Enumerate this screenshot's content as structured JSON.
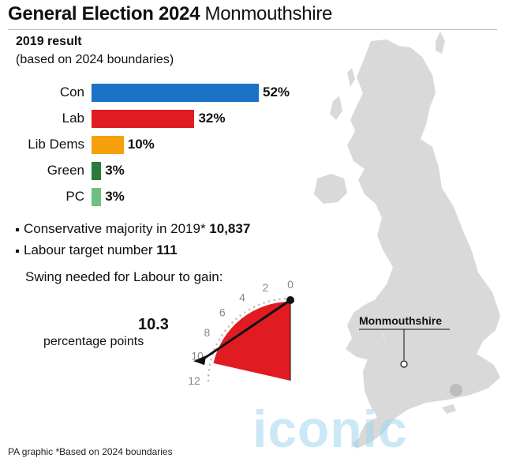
{
  "header": {
    "title_bold": "General Election 2024",
    "title_rest": "Monmouthshire",
    "subtitle": "2019 result",
    "subtitle_note": "(based on 2024 boundaries)"
  },
  "chart_data": [
    {
      "type": "bar",
      "orientation": "horizontal",
      "categories": [
        "Con",
        "Lab",
        "Lib Dems",
        "Green",
        "PC"
      ],
      "values": [
        52,
        32,
        10,
        3,
        3
      ],
      "value_labels": [
        "52%",
        "32%",
        "10%",
        "3%",
        "3%"
      ],
      "colors": [
        "#1a73c7",
        "#e01b22",
        "#f5a00c",
        "#2b7a3a",
        "#6fbf83"
      ],
      "xlim": [
        0,
        52
      ]
    },
    {
      "type": "gauge",
      "title": "Swing needed for Labour to gain:",
      "value": 10.3,
      "value_label": "10.3",
      "unit_label": "percentage points",
      "scale_ticks": [
        "0",
        "2",
        "4",
        "6",
        "8",
        "10",
        "12"
      ],
      "range": [
        0,
        12
      ],
      "fill_color": "#e01b22"
    }
  ],
  "notes": {
    "majority_text": "Conservative majority in 2019*",
    "majority_value": "10,837",
    "target_text": "Labour target number",
    "target_value": "111"
  },
  "map": {
    "label": "Monmouthshire",
    "land_color": "#d9d9d9"
  },
  "footer": {
    "credit": "PA graphic *Based on 2024 boundaries",
    "watermark": "iconic"
  }
}
